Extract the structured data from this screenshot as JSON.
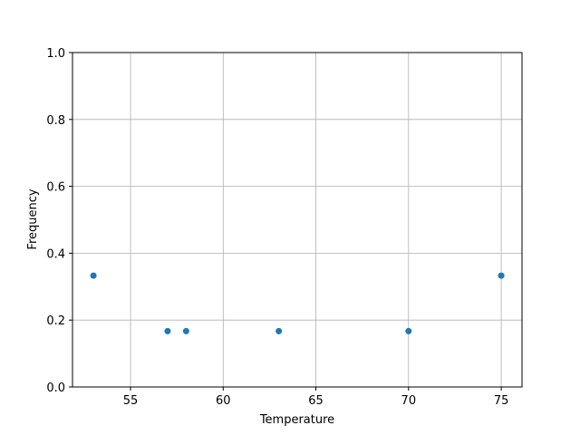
{
  "chart_data": {
    "type": "scatter",
    "title": "",
    "xlabel": "Temperature",
    "ylabel": "Frequency",
    "xlim": [
      51.87,
      76.12
    ],
    "ylim": [
      0,
      1
    ],
    "xticks": [
      55,
      60,
      65,
      70,
      75
    ],
    "yticks": [
      0.0,
      0.2,
      0.4,
      0.6,
      0.8,
      1.0
    ],
    "xtick_labels": [
      "55",
      "60",
      "65",
      "70",
      "75"
    ],
    "ytick_labels": [
      "0.0",
      "0.2",
      "0.4",
      "0.6",
      "0.8",
      "1.0"
    ],
    "grid": true,
    "color": "#1f77b4",
    "points": [
      {
        "x": 53,
        "y": 0.333
      },
      {
        "x": 57,
        "y": 0.167
      },
      {
        "x": 58,
        "y": 0.167
      },
      {
        "x": 63,
        "y": 0.167
      },
      {
        "x": 70,
        "y": 0.167
      },
      {
        "x": 75,
        "y": 0.333
      }
    ]
  }
}
